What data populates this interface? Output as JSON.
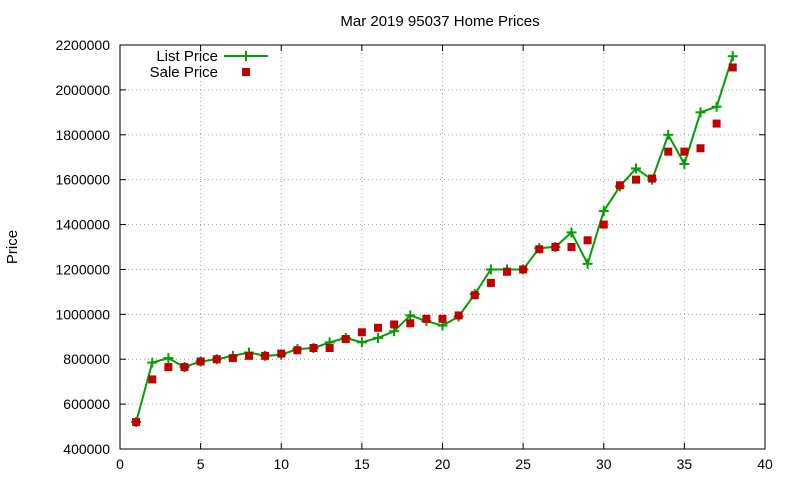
{
  "chart_data": {
    "type": "line",
    "title": "Mar 2019 95037 Home Prices",
    "xlabel": "",
    "ylabel": "Price",
    "xlim": [
      0,
      40
    ],
    "ylim": [
      400000,
      2200000
    ],
    "x_ticks": [
      0,
      5,
      10,
      15,
      20,
      25,
      30,
      35,
      40
    ],
    "y_ticks": [
      400000,
      600000,
      800000,
      1000000,
      1200000,
      1400000,
      1600000,
      1800000,
      2000000,
      2200000
    ],
    "grid": true,
    "legend_position": "top-left",
    "series": [
      {
        "name": "List Price",
        "style": "line-points",
        "marker": "plus",
        "color": "#00a000",
        "x": [
          1,
          2,
          3,
          4,
          5,
          6,
          7,
          8,
          9,
          10,
          11,
          12,
          13,
          14,
          15,
          16,
          17,
          18,
          19,
          20,
          21,
          22,
          23,
          24,
          25,
          26,
          27,
          28,
          29,
          30,
          31,
          32,
          33,
          34,
          35,
          36,
          37,
          38
        ],
        "values": [
          520000,
          785000,
          805000,
          765000,
          790000,
          800000,
          815000,
          830000,
          815000,
          820000,
          845000,
          850000,
          875000,
          895000,
          875000,
          895000,
          925000,
          995000,
          970000,
          950000,
          990000,
          1090000,
          1200000,
          1200000,
          1200000,
          1295000,
          1300000,
          1365000,
          1225000,
          1460000,
          1570000,
          1650000,
          1600000,
          1800000,
          1670000,
          1900000,
          1925000,
          2150000
        ]
      },
      {
        "name": "Sale Price",
        "style": "points",
        "marker": "square",
        "color": "#c00000",
        "x": [
          1,
          2,
          3,
          4,
          5,
          6,
          7,
          8,
          9,
          10,
          11,
          12,
          13,
          14,
          15,
          16,
          17,
          18,
          19,
          20,
          21,
          22,
          23,
          24,
          25,
          26,
          27,
          28,
          29,
          30,
          31,
          32,
          33,
          34,
          35,
          36,
          37,
          38
        ],
        "values": [
          520000,
          710000,
          765000,
          765000,
          790000,
          800000,
          805000,
          815000,
          815000,
          825000,
          840000,
          850000,
          850000,
          890000,
          920000,
          940000,
          955000,
          960000,
          980000,
          980000,
          995000,
          1085000,
          1140000,
          1190000,
          1200000,
          1290000,
          1300000,
          1300000,
          1330000,
          1400000,
          1575000,
          1600000,
          1605000,
          1725000,
          1725000,
          1740000,
          1850000,
          2100000
        ]
      }
    ]
  }
}
